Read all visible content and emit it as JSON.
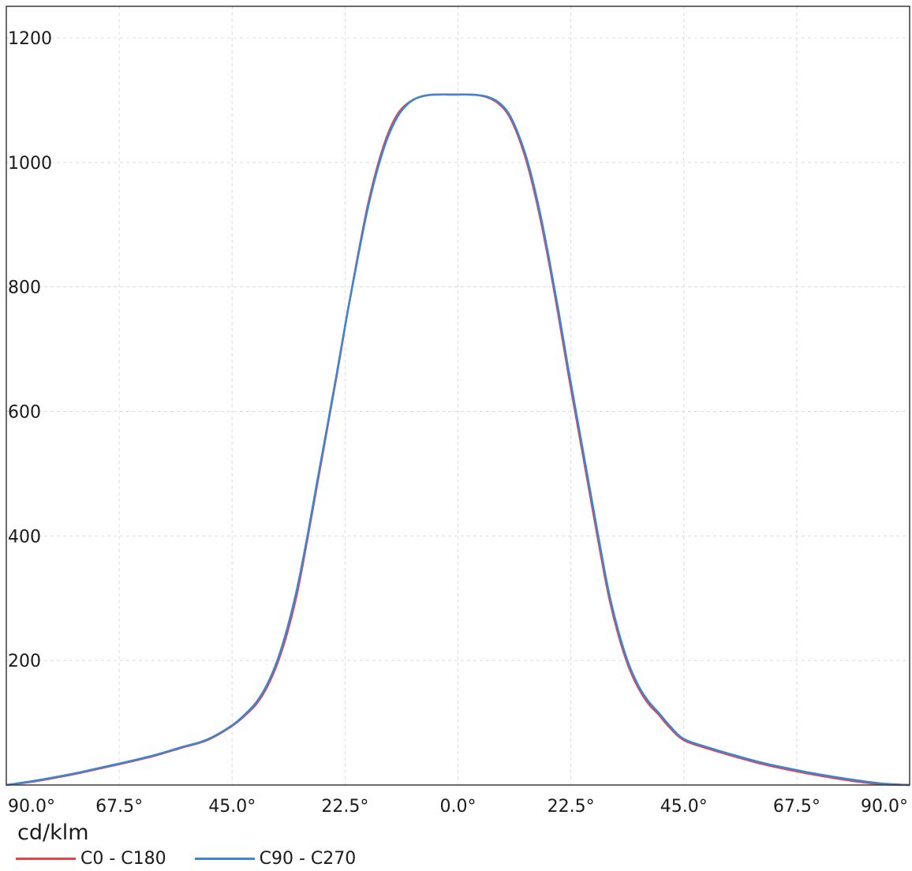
{
  "chart_data": {
    "type": "line",
    "unit_label": "cd/klm",
    "x_tick_labels": [
      "90.0°",
      "67.5°",
      "45.0°",
      "22.5°",
      "0.0°",
      "22.5°",
      "45.0°",
      "67.5°",
      "90.0°"
    ],
    "x_tick_values": [
      -90,
      -67.5,
      -45,
      -22.5,
      0,
      22.5,
      45,
      67.5,
      90
    ],
    "xlim": [
      -90,
      90
    ],
    "y_ticks": [
      200,
      400,
      600,
      800,
      1000,
      1200
    ],
    "ylim": [
      0,
      1200
    ],
    "grid": true,
    "legend_position": "bottom-left",
    "x": [
      -90,
      -85,
      -80,
      -75,
      -70,
      -65,
      -60,
      -55,
      -50,
      -45,
      -42,
      -40,
      -38,
      -36,
      -34,
      -32,
      -30,
      -28,
      -26,
      -24,
      -22,
      -20,
      -18,
      -16,
      -14,
      -12,
      -10,
      -8,
      -6,
      -4,
      -2,
      0,
      2,
      4,
      6,
      8,
      10,
      12,
      14,
      16,
      18,
      20,
      22,
      24,
      26,
      28,
      30,
      32,
      34,
      36,
      38,
      40,
      42,
      45,
      50,
      55,
      60,
      65,
      70,
      75,
      80,
      85,
      90
    ],
    "series": [
      {
        "name": "C0 - C180",
        "color": "#e8414a",
        "values": [
          0,
          5,
          12,
          20,
          29,
          38,
          48,
          60,
          72,
          95,
          115,
          132,
          158,
          195,
          245,
          310,
          395,
          485,
          575,
          665,
          760,
          848,
          930,
          995,
          1045,
          1078,
          1095,
          1104,
          1108,
          1109,
          1109,
          1109,
          1109,
          1108,
          1104,
          1095,
          1077,
          1042,
          992,
          925,
          845,
          755,
          660,
          570,
          480,
          390,
          305,
          240,
          190,
          155,
          130,
          113,
          94,
          72,
          58,
          46,
          35,
          26,
          18,
          11,
          5,
          1,
          0
        ]
      },
      {
        "name": "C90 - C270",
        "color": "#3a86d4",
        "values": [
          0,
          6,
          13,
          21,
          30,
          39,
          49,
          61,
          73,
          96,
          117,
          135,
          162,
          200,
          252,
          318,
          400,
          490,
          578,
          668,
          760,
          845,
          925,
          990,
          1040,
          1074,
          1094,
          1104,
          1108,
          1109,
          1109,
          1109,
          1109,
          1108,
          1105,
          1097,
          1080,
          1046,
          998,
          932,
          852,
          763,
          668,
          578,
          488,
          398,
          312,
          246,
          195,
          159,
          134,
          116,
          97,
          74,
          60,
          48,
          37,
          28,
          20,
          13,
          7,
          2,
          0
        ]
      }
    ]
  }
}
